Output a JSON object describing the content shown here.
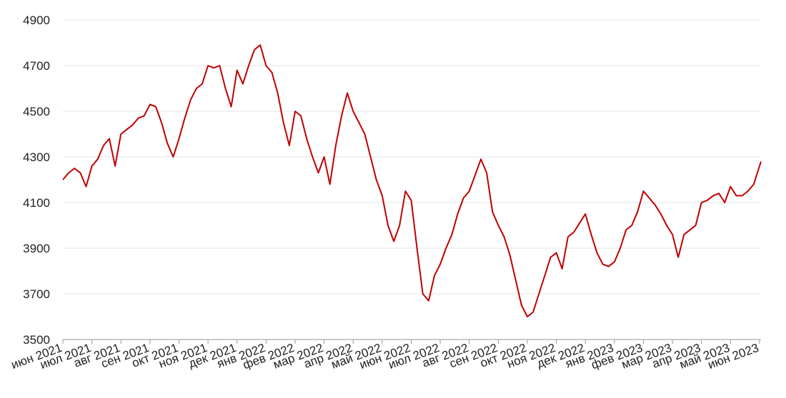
{
  "chart_data": {
    "type": "line",
    "color": "#c00000",
    "grid": true,
    "x": [
      0,
      0.2,
      0.4,
      0.6,
      0.8,
      1,
      1.2,
      1.4,
      1.6,
      1.8,
      2,
      2.2,
      2.4,
      2.6,
      2.8,
      3,
      3.2,
      3.4,
      3.6,
      3.8,
      4,
      4.2,
      4.4,
      4.6,
      4.8,
      5,
      5.2,
      5.4,
      5.6,
      5.8,
      6,
      6.2,
      6.4,
      6.6,
      6.8,
      7,
      7.2,
      7.4,
      7.6,
      7.8,
      8,
      8.2,
      8.4,
      8.6,
      8.8,
      9,
      9.2,
      9.4,
      9.6,
      9.8,
      10,
      10.2,
      10.4,
      10.6,
      10.8,
      11,
      11.2,
      11.4,
      11.6,
      11.8,
      12,
      12.2,
      12.4,
      12.6,
      12.8,
      13,
      13.2,
      13.4,
      13.6,
      13.8,
      14,
      14.2,
      14.4,
      14.6,
      14.8,
      15,
      15.2,
      15.4,
      15.6,
      15.8,
      16,
      16.2,
      16.4,
      16.6,
      16.8,
      17,
      17.2,
      17.4,
      17.6,
      17.8,
      18,
      18.2,
      18.4,
      18.6,
      18.8,
      19,
      19.2,
      19.4,
      19.6,
      19.8,
      20,
      20.2,
      20.4,
      20.6,
      20.8,
      21,
      21.2,
      21.4,
      21.6,
      21.8,
      22,
      22.2,
      22.4,
      22.6,
      22.8,
      23,
      23.2,
      23.4,
      23.6,
      23.8,
      24.05
    ],
    "values": [
      4200,
      4230,
      4250,
      4230,
      4170,
      4260,
      4290,
      4350,
      4380,
      4260,
      4400,
      4420,
      4440,
      4470,
      4480,
      4530,
      4520,
      4450,
      4360,
      4300,
      4380,
      4470,
      4550,
      4600,
      4620,
      4700,
      4690,
      4700,
      4600,
      4520,
      4680,
      4620,
      4700,
      4770,
      4790,
      4700,
      4670,
      4580,
      4450,
      4350,
      4500,
      4480,
      4380,
      4300,
      4230,
      4300,
      4180,
      4350,
      4480,
      4580,
      4500,
      4450,
      4400,
      4300,
      4200,
      4130,
      4000,
      3930,
      4000,
      4150,
      4110,
      3900,
      3700,
      3670,
      3780,
      3830,
      3900,
      3960,
      4050,
      4120,
      4150,
      4220,
      4290,
      4230,
      4060,
      4000,
      3950,
      3870,
      3760,
      3650,
      3600,
      3620,
      3700,
      3780,
      3860,
      3880,
      3810,
      3950,
      3970,
      4010,
      4050,
      3960,
      3880,
      3830,
      3820,
      3840,
      3900,
      3980,
      4000,
      4060,
      4150,
      4120,
      4090,
      4050,
      4000,
      3960,
      3860,
      3960,
      3980,
      4000,
      4100,
      4110,
      4130,
      4140,
      4100,
      4170,
      4130,
      4130,
      4150,
      4180,
      4280
    ],
    "xlim": [
      0,
      24.05
    ],
    "xticks": [
      {
        "value": 0,
        "label": "июн 2021"
      },
      {
        "value": 1,
        "label": "июл 2021"
      },
      {
        "value": 2,
        "label": "авг 2021"
      },
      {
        "value": 3,
        "label": "сен 2021"
      },
      {
        "value": 4,
        "label": "окт 2021"
      },
      {
        "value": 5,
        "label": "ноя 2021"
      },
      {
        "value": 6,
        "label": "дек 2021"
      },
      {
        "value": 7,
        "label": "янв 2022"
      },
      {
        "value": 8,
        "label": "фев 2022"
      },
      {
        "value": 9,
        "label": "мар 2022"
      },
      {
        "value": 10,
        "label": "апр 2022"
      },
      {
        "value": 11,
        "label": "май 2022"
      },
      {
        "value": 12,
        "label": "июн 2022"
      },
      {
        "value": 13,
        "label": "июл 2022"
      },
      {
        "value": 14,
        "label": "авг 2022"
      },
      {
        "value": 15,
        "label": "сен 2022"
      },
      {
        "value": 16,
        "label": "окт 2022"
      },
      {
        "value": 17,
        "label": "ноя 2022"
      },
      {
        "value": 18,
        "label": "дек 2022"
      },
      {
        "value": 19,
        "label": "янв 2023"
      },
      {
        "value": 20,
        "label": "фев 2023"
      },
      {
        "value": 21,
        "label": "мар 2023"
      },
      {
        "value": 22,
        "label": "апр 2023"
      },
      {
        "value": 23,
        "label": "май 2023"
      },
      {
        "value": 24,
        "label": "июн 2023"
      }
    ],
    "ylim": [
      3500,
      4900
    ],
    "yticks": [
      3500,
      3700,
      3900,
      4100,
      4300,
      4500,
      4700,
      4900
    ]
  }
}
